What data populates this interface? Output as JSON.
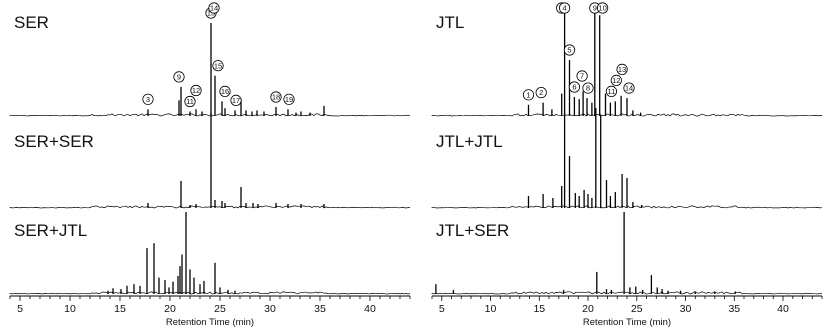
{
  "colors": {
    "trace": "#000000",
    "background": "#ffffff"
  },
  "chart_data": [
    {
      "type": "line",
      "panel": "left",
      "x_axis": {
        "label": "Retention Time (min)",
        "range": [
          4,
          44
        ],
        "ticks": [
          5,
          10,
          15,
          20,
          25,
          30,
          35,
          40
        ],
        "tick_labels": [
          "5",
          "10",
          "15",
          "20",
          "25",
          "30",
          "35",
          "40"
        ]
      },
      "y_axis": {
        "range": [
          0,
          1
        ]
      },
      "traces": [
        {
          "name": "SER",
          "peaks": [
            [
              17.8,
              0.06
            ],
            [
              20.9,
              0.14
            ],
            [
              21.1,
              0.26
            ],
            [
              22.0,
              0.04
            ],
            [
              22.6,
              0.06
            ],
            [
              23.2,
              0.04
            ],
            [
              24.1,
              0.83
            ],
            [
              24.5,
              0.36
            ],
            [
              25.2,
              0.13
            ],
            [
              25.5,
              0.07
            ],
            [
              26.5,
              0.05
            ],
            [
              27.1,
              0.15
            ],
            [
              27.6,
              0.05
            ],
            [
              28.2,
              0.04
            ],
            [
              28.7,
              0.05
            ],
            [
              29.4,
              0.04
            ],
            [
              30.6,
              0.08
            ],
            [
              31.8,
              0.06
            ],
            [
              32.6,
              0.03
            ],
            [
              33.1,
              0.04
            ],
            [
              34.0,
              0.03
            ],
            [
              35.4,
              0.09
            ]
          ],
          "annotations": [
            {
              "label": "3",
              "x": 17.8
            },
            {
              "label": "9",
              "x": 20.9
            },
            {
              "label": "11",
              "x": 22.0
            },
            {
              "label": "12",
              "x": 22.6
            },
            {
              "label": "13",
              "x": 24.1
            },
            {
              "label": "14",
              "x": 24.4
            },
            {
              "label": "15",
              "x": 24.8
            },
            {
              "label": "16",
              "x": 25.5
            },
            {
              "label": "17",
              "x": 26.6
            },
            {
              "label": "18",
              "x": 30.6
            },
            {
              "label": "19",
              "x": 31.9
            }
          ]
        },
        {
          "name": "SER+SER",
          "peaks": [
            [
              17.8,
              0.05
            ],
            [
              21.1,
              0.27
            ],
            [
              22.0,
              0.03
            ],
            [
              22.6,
              0.04
            ],
            [
              24.1,
              0.95
            ],
            [
              24.5,
              0.08
            ],
            [
              25.2,
              0.07
            ],
            [
              25.5,
              0.05
            ],
            [
              27.1,
              0.21
            ],
            [
              27.6,
              0.05
            ],
            [
              28.3,
              0.05
            ],
            [
              28.8,
              0.04
            ],
            [
              30.6,
              0.05
            ],
            [
              31.8,
              0.04
            ],
            [
              33.1,
              0.04
            ],
            [
              35.4,
              0.04
            ]
          ]
        },
        {
          "name": "SER+JTL",
          "peaks": [
            [
              13.8,
              0.04
            ],
            [
              14.3,
              0.07
            ],
            [
              15.1,
              0.06
            ],
            [
              15.7,
              0.1
            ],
            [
              16.4,
              0.12
            ],
            [
              17.0,
              0.1
            ],
            [
              17.7,
              0.56
            ],
            [
              18.4,
              0.62
            ],
            [
              18.9,
              0.2
            ],
            [
              19.5,
              0.17
            ],
            [
              19.9,
              0.08
            ],
            [
              20.3,
              0.15
            ],
            [
              20.8,
              0.22
            ],
            [
              21.0,
              0.34
            ],
            [
              21.2,
              0.48
            ],
            [
              21.6,
              1.0
            ],
            [
              22.0,
              0.3
            ],
            [
              22.4,
              0.2
            ],
            [
              23.0,
              0.12
            ],
            [
              23.4,
              0.16
            ],
            [
              24.5,
              0.38
            ],
            [
              25.0,
              0.08
            ],
            [
              25.8,
              0.05
            ],
            [
              26.5,
              0.04
            ]
          ]
        }
      ]
    },
    {
      "type": "line",
      "panel": "right",
      "x_axis": {
        "label": "Retention Time (min)",
        "range": [
          4,
          44
        ],
        "ticks": [
          5,
          10,
          15,
          20,
          25,
          30,
          35,
          40
        ],
        "tick_labels": [
          "5",
          "10",
          "15",
          "20",
          "25",
          "30",
          "35",
          "40"
        ]
      },
      "y_axis": {
        "range": [
          0,
          1
        ]
      },
      "traces": [
        {
          "name": "JTL",
          "peaks": [
            [
              13.9,
              0.1
            ],
            [
              15.4,
              0.12
            ],
            [
              16.3,
              0.06
            ],
            [
              17.3,
              0.2
            ],
            [
              17.6,
              0.92
            ],
            [
              18.1,
              0.5
            ],
            [
              18.6,
              0.17
            ],
            [
              19.1,
              0.15
            ],
            [
              19.5,
              0.22
            ],
            [
              19.9,
              0.16
            ],
            [
              20.4,
              0.12
            ],
            [
              20.7,
              0.98
            ],
            [
              21.2,
              0.9
            ],
            [
              21.8,
              0.2
            ],
            [
              22.3,
              0.12
            ],
            [
              22.8,
              0.13
            ],
            [
              23.4,
              0.18
            ],
            [
              24.0,
              0.16
            ],
            [
              24.6,
              0.05
            ],
            [
              25.4,
              0.03
            ]
          ],
          "annotations": [
            {
              "label": "1",
              "x": 13.9
            },
            {
              "label": "2",
              "x": 15.2
            },
            {
              "label": "3",
              "x": 17.3
            },
            {
              "label": "4",
              "x": 17.6
            },
            {
              "label": "5",
              "x": 18.1
            },
            {
              "label": "6",
              "x": 18.6
            },
            {
              "label": "7",
              "x": 19.4
            },
            {
              "label": "8",
              "x": 20.0
            },
            {
              "label": "9",
              "x": 20.7
            },
            {
              "label": "10",
              "x": 21.5
            },
            {
              "label": "11",
              "x": 22.4
            },
            {
              "label": "12",
              "x": 22.9
            },
            {
              "label": "13",
              "x": 23.5
            },
            {
              "label": "14",
              "x": 24.2
            }
          ]
        },
        {
          "name": "JTL+JTL",
          "peaks": [
            [
              13.9,
              0.12
            ],
            [
              15.4,
              0.14
            ],
            [
              16.4,
              0.1
            ],
            [
              17.3,
              0.22
            ],
            [
              17.6,
              0.95
            ],
            [
              18.1,
              0.52
            ],
            [
              18.7,
              0.15
            ],
            [
              19.1,
              0.12
            ],
            [
              19.6,
              0.18
            ],
            [
              20.0,
              0.14
            ],
            [
              20.4,
              0.1
            ],
            [
              20.8,
              1.0
            ],
            [
              21.3,
              0.93
            ],
            [
              21.9,
              0.28
            ],
            [
              22.3,
              0.12
            ],
            [
              22.8,
              0.16
            ],
            [
              23.5,
              0.34
            ],
            [
              24.0,
              0.3
            ],
            [
              24.6,
              0.06
            ],
            [
              25.5,
              0.03
            ]
          ]
        },
        {
          "name": "JTL+SER",
          "peaks": [
            [
              4.4,
              0.12
            ],
            [
              6.2,
              0.05
            ],
            [
              17.5,
              0.05
            ],
            [
              20.9,
              0.27
            ],
            [
              21.9,
              0.06
            ],
            [
              22.4,
              0.05
            ],
            [
              23.7,
              1.0
            ],
            [
              24.3,
              0.08
            ],
            [
              24.9,
              0.09
            ],
            [
              25.6,
              0.05
            ],
            [
              26.5,
              0.23
            ],
            [
              27.1,
              0.08
            ],
            [
              27.6,
              0.06
            ],
            [
              28.2,
              0.04
            ],
            [
              29.5,
              0.04
            ],
            [
              31.0,
              0.03
            ],
            [
              33.0,
              0.03
            ],
            [
              35.1,
              0.03
            ]
          ]
        }
      ]
    }
  ]
}
